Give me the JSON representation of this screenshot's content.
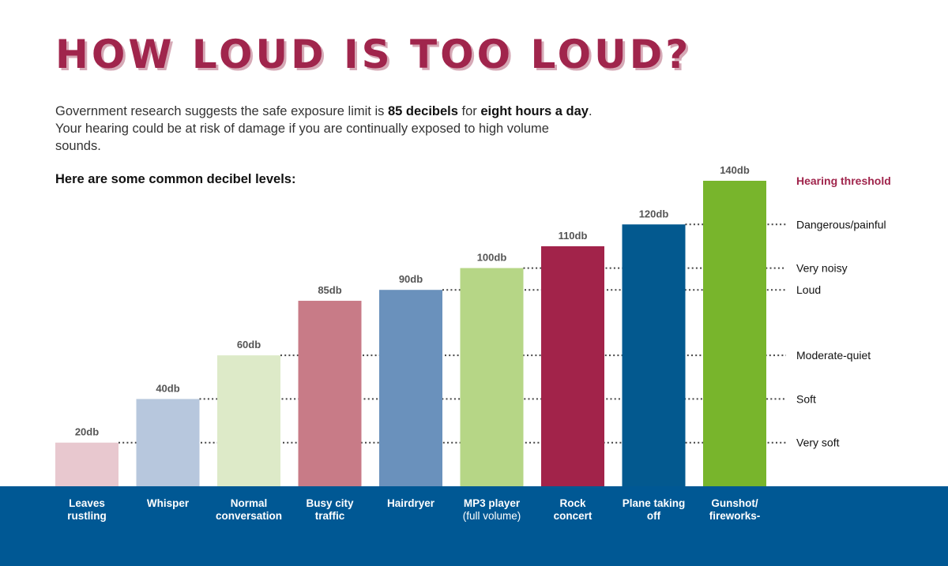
{
  "header": {
    "title": "HOW LOUD IS TOO LOUD?",
    "intro_part1": "Government research suggests the safe exposure limit is ",
    "intro_bold1": "85 decibels",
    "intro_part2": " for ",
    "intro_bold2": "eight hours a day",
    "intro_part3": ". Your hearing could be at risk of damage if you are continually exposed to high volume sounds.",
    "subheading": "Here are some common decibel levels:"
  },
  "chart_data": {
    "type": "bar",
    "title": "HOW LOUD IS TOO LOUD?",
    "unit": "db",
    "ylim": [
      0,
      140
    ],
    "grid": false,
    "categories": [
      [
        "Leaves",
        "rustling"
      ],
      [
        "Whisper"
      ],
      [
        "Normal",
        "conversation"
      ],
      [
        "Busy city",
        "traffic"
      ],
      [
        "Hairdryer"
      ],
      [
        "MP3 player",
        "(full volume)"
      ],
      [
        "Rock",
        "concert"
      ],
      [
        "Plane taking",
        "off"
      ],
      [
        "Gunshot/",
        "fireworks-"
      ]
    ],
    "values": [
      20,
      40,
      60,
      85,
      90,
      100,
      110,
      120,
      140
    ],
    "value_labels": [
      "20db",
      "40db",
      "60db",
      "85db",
      "90db",
      "100db",
      "110db",
      "120db",
      "140db"
    ],
    "colors": [
      "#e8c8cf",
      "#b7c7dd",
      "#ddeac8",
      "#c87b87",
      "#6a91bc",
      "#b6d686",
      "#a2234a",
      "#03598f",
      "#78b52c"
    ],
    "thresholds": [
      {
        "label": "Very soft",
        "value": 20,
        "from_bar": 0,
        "color": "#111111"
      },
      {
        "label": "Soft",
        "value": 40,
        "from_bar": 1,
        "color": "#111111"
      },
      {
        "label": "Moderate-quiet",
        "value": 60,
        "from_bar": 2,
        "color": "#111111"
      },
      {
        "label": "Loud",
        "value": 90,
        "from_bar": 4,
        "color": "#111111"
      },
      {
        "label": "Very noisy",
        "value": 100,
        "from_bar": 5,
        "color": "#111111"
      },
      {
        "label": "Dangerous/painful",
        "value": 120,
        "from_bar": 7,
        "color": "#111111"
      },
      {
        "label": "Hearing threshold",
        "value": 140,
        "from_bar": -1,
        "color": "#a0254c"
      }
    ]
  },
  "colors": {
    "footer": "#005894",
    "title": "#a0254c"
  }
}
